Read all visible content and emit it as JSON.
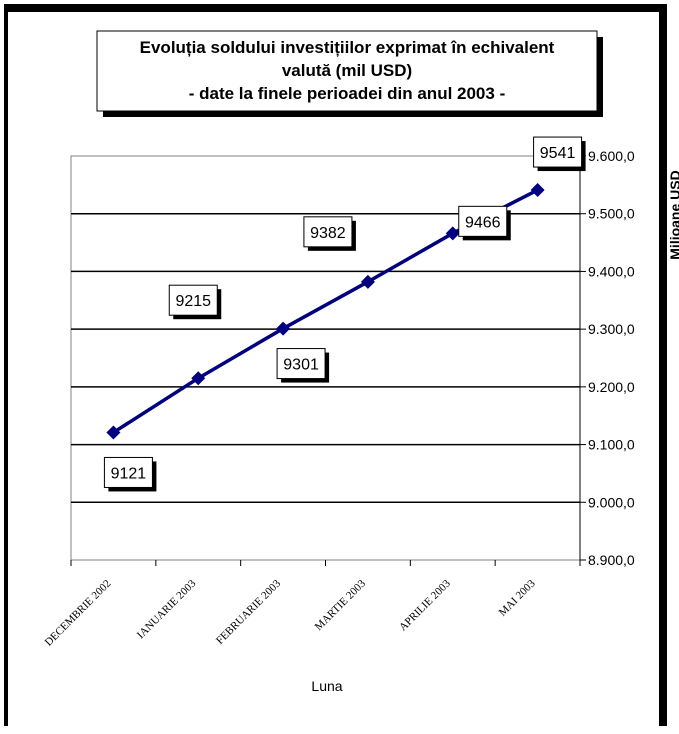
{
  "chart_data": {
    "type": "line",
    "title": [
      "Evoluția soldului investițiilor exprimat în echivalent",
      "valută (mil USD)",
      "- date la finele perioadei din anul 2003 -"
    ],
    "xlabel": "Luna",
    "ylabel": "Milioane USD",
    "categories": [
      "DECEMBRIE 2002",
      "IANUARIE 2003",
      "FEBRUARIE 2003",
      "MARTIE 2003",
      "APRILIE 2003",
      "MAI 2003"
    ],
    "series": [
      {
        "values": [
          9121,
          9215,
          9301,
          9382,
          9466,
          9541
        ],
        "color": "#000080"
      }
    ],
    "data_labels": [
      "9121",
      "9215",
      "9301",
      "9382",
      "9466",
      "9541"
    ],
    "ylim": [
      8900,
      9600
    ],
    "yticks": [
      "8.900,0",
      "9.000,0",
      "9.100,0",
      "9.200,0",
      "9.300,0",
      "9.400,0",
      "9.500,0",
      "9.600,0"
    ],
    "y_axis_side": "right",
    "grid": true
  }
}
